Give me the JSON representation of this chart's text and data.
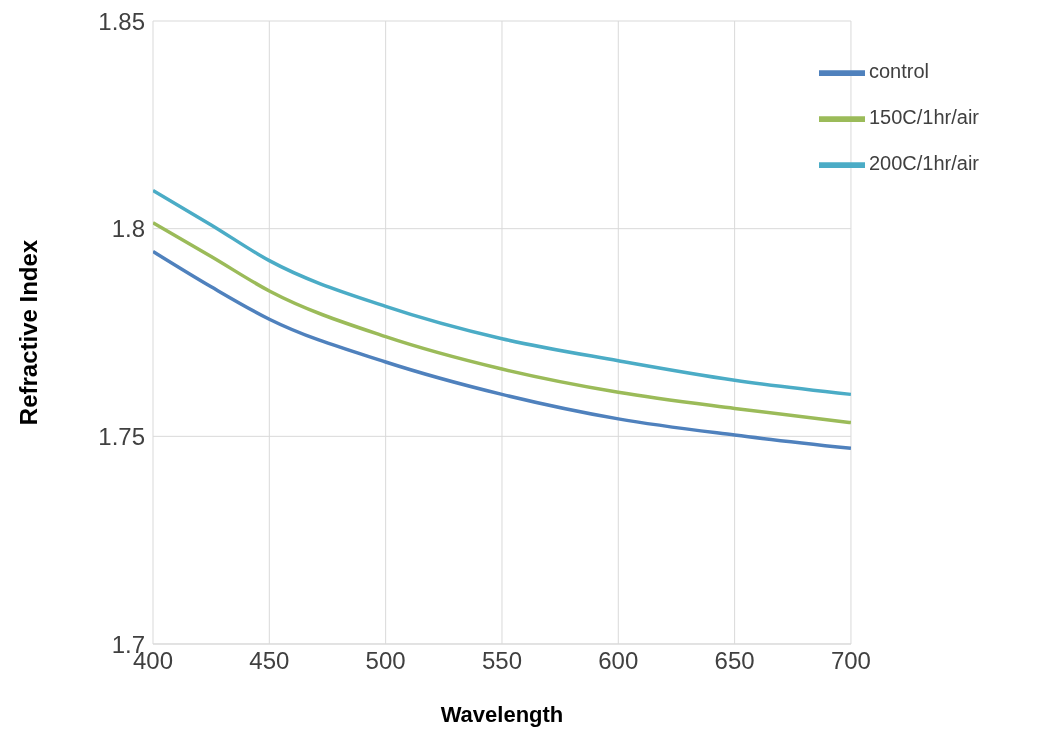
{
  "chart_data": {
    "type": "line",
    "xlabel": "Wavelength",
    "ylabel": "Refractive Index",
    "x": [
      400,
      425,
      450,
      500,
      550,
      600,
      650,
      700
    ],
    "series": [
      {
        "name": "control",
        "color": "#4f81bd",
        "values": [
          1.7945,
          1.786,
          1.7782,
          1.7679,
          1.7601,
          1.7542,
          1.7503,
          1.7471
        ]
      },
      {
        "name": "150C/1hr/air",
        "color": "#9bbb59",
        "values": [
          1.8014,
          1.7933,
          1.785,
          1.774,
          1.7662,
          1.7606,
          1.7567,
          1.7533
        ]
      },
      {
        "name": "200C/1hr/air",
        "color": "#4bacc6",
        "values": [
          1.8092,
          1.8009,
          1.7923,
          1.7813,
          1.7735,
          1.7682,
          1.7635,
          1.7601
        ]
      }
    ],
    "xlim": [
      400,
      700
    ],
    "xticks": [
      400,
      450,
      500,
      550,
      600,
      650,
      700
    ],
    "ylim": [
      1.7,
      1.85
    ],
    "yticks": [
      1.7,
      1.75,
      1.8,
      1.85
    ],
    "grid": true,
    "legend": "top right",
    "marker": "none",
    "line_style": "solid"
  }
}
